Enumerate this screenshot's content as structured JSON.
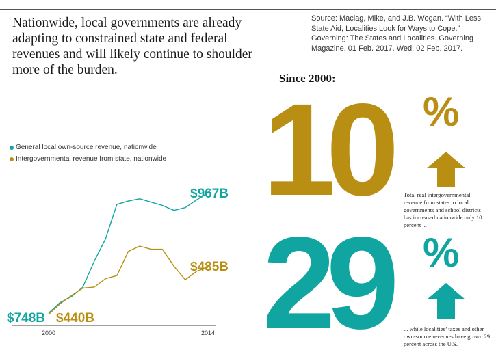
{
  "headline": "Nationwide, local governments are already adapting to constrained state and federal revenues and will likely continue to shoulder more of the burden.",
  "source": "Source: Maciag, Mike, and J.B. Wogan. “With Less State Aid, Localities Look for Ways to Cope.” Governing: The States and Localities. Governing Magazine, 01 Feb. 2017. Wed. 02 Feb. 2017.",
  "colors": {
    "teal": "#10a5a0",
    "gold": "#b88e13"
  },
  "chart_data": {
    "type": "line",
    "title": "",
    "xlabel": "",
    "ylabel": "",
    "x": [
      2000,
      2001,
      2002,
      2003,
      2004,
      2005,
      2006,
      2007,
      2008,
      2009,
      2010,
      2011,
      2012,
      2013,
      2014
    ],
    "series": [
      {
        "name": "General local own-source revenue, nationwide",
        "color": "#10a5a0",
        "values": [
          748,
          767,
          778,
          795,
          842,
          883,
          946,
          952,
          956,
          950,
          944,
          935,
          940,
          954,
          967
        ]
      },
      {
        "name": "Intergovernmental revenue from state, nationwide",
        "color": "#b88e13",
        "values": [
          440,
          450,
          458,
          465,
          466,
          474,
          477,
          500,
          505,
          502,
          502,
          486,
          473,
          481,
          485
        ]
      }
    ],
    "xticks": [
      "2000",
      "2014"
    ],
    "labels": {
      "start_teal": "$748B",
      "start_gold": "$440B",
      "end_teal": "$967B",
      "end_gold": "$485B"
    },
    "legend_position": "top-left",
    "grid": false
  },
  "stats": {
    "since": "Since 2000:",
    "stat1": {
      "value": "10",
      "unit": "%",
      "direction": "up",
      "note": "Total real intergovernmental revenue from states to local governments and school districts has increased nationwide only 10 percent ..."
    },
    "stat2": {
      "value": "29",
      "unit": "%",
      "direction": "up",
      "note": "... while localities’ taxes and other own-source revenues have grown 29 percent across the U.S."
    }
  }
}
